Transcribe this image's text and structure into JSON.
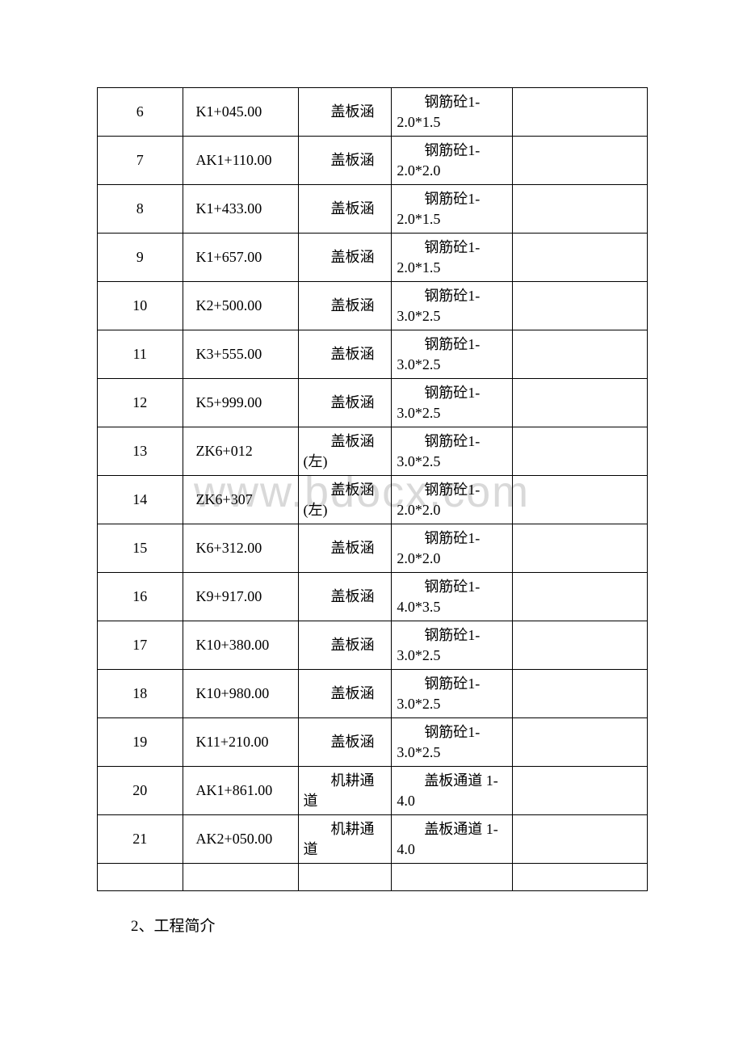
{
  "watermark": "www.bdocx.com",
  "table": {
    "rows": [
      {
        "num": "6",
        "stake": "K1+045.00",
        "type": "盖板涵",
        "spec": "钢筋砼1-2.0*1.5"
      },
      {
        "num": "7",
        "stake": "AK1+110.00",
        "type": "盖板涵",
        "spec": "钢筋砼1-2.0*2.0"
      },
      {
        "num": "8",
        "stake": "K1+433.00",
        "type": "盖板涵",
        "spec": "钢筋砼1-2.0*1.5"
      },
      {
        "num": "9",
        "stake": "K1+657.00",
        "type": "盖板涵",
        "spec": "钢筋砼1-2.0*1.5"
      },
      {
        "num": "10",
        "stake": "K2+500.00",
        "type": "盖板涵",
        "spec": "钢筋砼1-3.0*2.5"
      },
      {
        "num": "11",
        "stake": "K3+555.00",
        "type": "盖板涵",
        "spec": "钢筋砼1-3.0*2.5"
      },
      {
        "num": "12",
        "stake": "K5+999.00",
        "type": "盖板涵",
        "spec": "钢筋砼1-3.0*2.5"
      },
      {
        "num": "13",
        "stake": "ZK6+012",
        "type": "盖板涵(左)",
        "spec": "钢筋砼1-3.0*2.5"
      },
      {
        "num": "14",
        "stake": "ZK6+307",
        "type": "盖板涵(左)",
        "spec": "钢筋砼1-2.0*2.0"
      },
      {
        "num": "15",
        "stake": "K6+312.00",
        "type": "盖板涵",
        "spec": "钢筋砼1-2.0*2.0"
      },
      {
        "num": "16",
        "stake": "K9+917.00",
        "type": "盖板涵",
        "spec": "钢筋砼1-4.0*3.5"
      },
      {
        "num": "17",
        "stake": "K10+380.00",
        "type": "盖板涵",
        "spec": "钢筋砼1-3.0*2.5"
      },
      {
        "num": "18",
        "stake": "K10+980.00",
        "type": "盖板涵",
        "spec": "钢筋砼1-3.0*2.5"
      },
      {
        "num": "19",
        "stake": "K11+210.00",
        "type": "盖板涵",
        "spec": "钢筋砼1-3.0*2.5"
      },
      {
        "num": "20",
        "stake": "AK1+861.00",
        "type": "机耕通道",
        "spec": "盖板通道 1-4.0"
      },
      {
        "num": "21",
        "stake": "AK2+050.00",
        "type": "机耕通道",
        "spec": "盖板通道 1-4.0"
      }
    ]
  },
  "footer": "2、工程简介"
}
